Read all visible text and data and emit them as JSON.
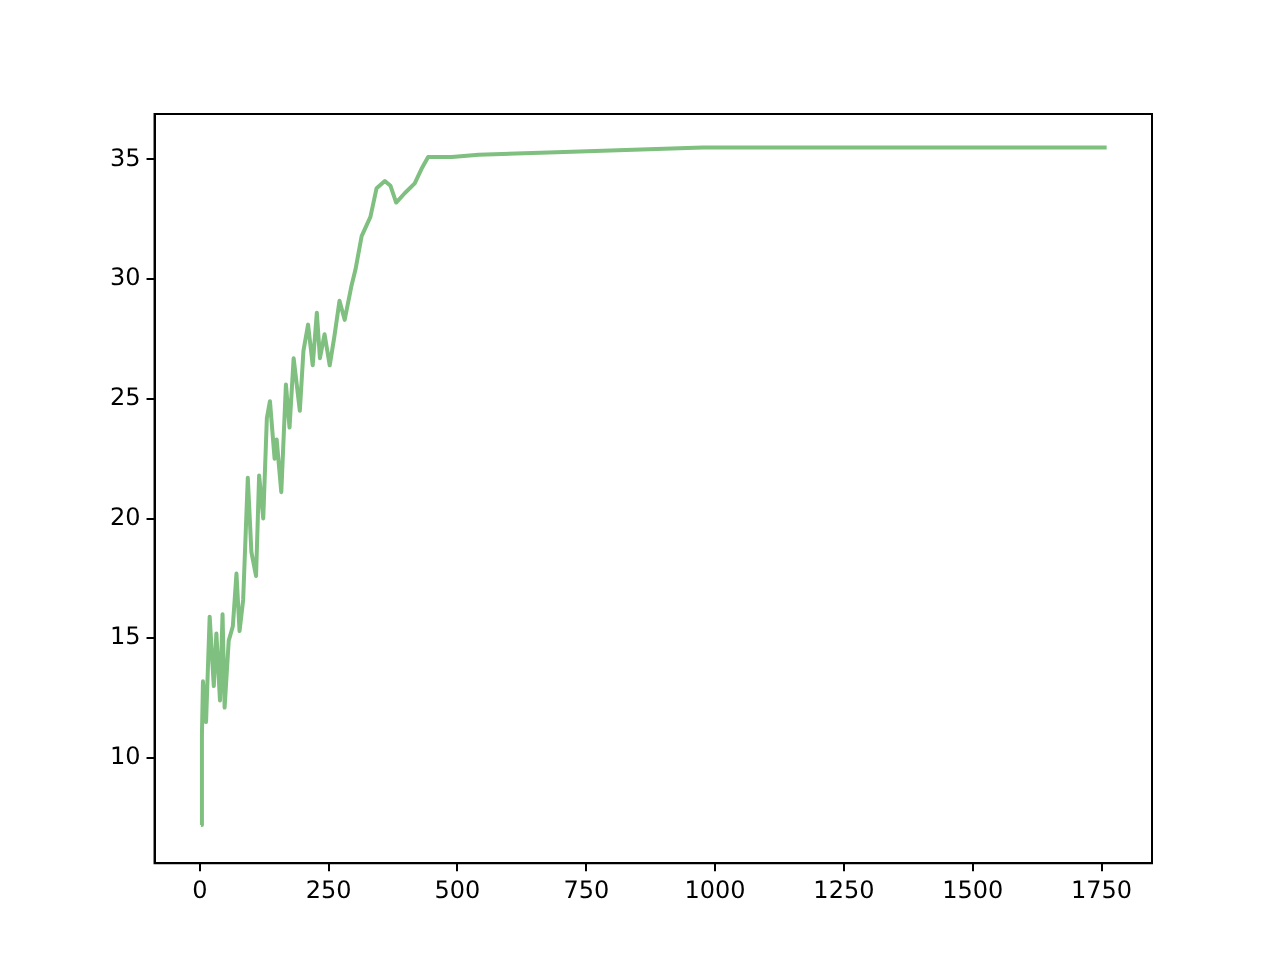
{
  "chart_data": {
    "type": "line",
    "xlim": [
      -88,
      1848
    ],
    "ylim": [
      5.6,
      36.9
    ],
    "xticks": [
      0,
      250,
      500,
      750,
      1000,
      1250,
      1500,
      1750
    ],
    "yticks": [
      10,
      15,
      20,
      25,
      30,
      35
    ],
    "grid": false,
    "legend": false,
    "marker": "none",
    "line_style": "solid",
    "series": [
      {
        "color": "#7fbf7f",
        "x": [
          2,
          4,
          6,
          12,
          19,
          27,
          32,
          39,
          44,
          48,
          56,
          64,
          71,
          77,
          84,
          93,
          100,
          109,
          115,
          123,
          130,
          136,
          145,
          149,
          158,
          167,
          174,
          182,
          188,
          194,
          201,
          210,
          219,
          227,
          233,
          242,
          252,
          261,
          271,
          281,
          294,
          302,
          314,
          331,
          343,
          359,
          370,
          381,
          398,
          417,
          430,
          443,
          489,
          541,
          692,
          976,
          1276,
          1760
        ],
        "values": [
          7.2,
          11.0,
          13.2,
          11.5,
          15.9,
          13.0,
          15.2,
          12.4,
          16.0,
          12.1,
          14.9,
          15.5,
          17.7,
          15.3,
          16.6,
          21.7,
          18.6,
          17.6,
          21.8,
          20.0,
          24.2,
          24.9,
          22.5,
          23.3,
          21.1,
          25.6,
          23.8,
          26.7,
          25.6,
          24.5,
          27.0,
          28.1,
          26.4,
          28.6,
          26.7,
          27.7,
          26.4,
          27.6,
          29.1,
          28.3,
          29.7,
          30.4,
          31.8,
          32.6,
          33.8,
          34.1,
          33.9,
          33.2,
          33.6,
          34.0,
          34.6,
          35.1,
          35.1,
          35.2,
          35.3,
          35.5,
          35.5,
          35.5
        ]
      }
    ]
  }
}
